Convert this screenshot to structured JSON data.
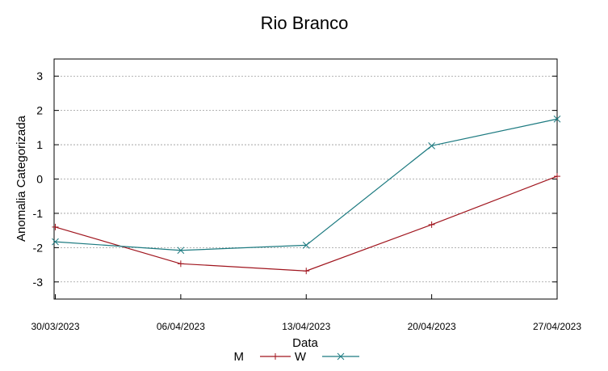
{
  "chart_data": {
    "type": "line",
    "title": "Rio Branco",
    "xlabel": "Data",
    "ylabel": "Anomalia Categorizada",
    "categories": [
      "30/03/2023",
      "06/04/2023",
      "13/04/2023",
      "20/04/2023",
      "27/04/2023"
    ],
    "ylim": [
      -3.5,
      3.5
    ],
    "yticks": [
      -3,
      -2,
      -1,
      0,
      1,
      2,
      3
    ],
    "grid": true,
    "legend_position": "bottom",
    "series": [
      {
        "name": "M",
        "color": "#a0151e",
        "marker": "plus",
        "values": [
          -1.4,
          -2.47,
          -2.68,
          -1.33,
          0.08
        ]
      },
      {
        "name": "W",
        "color": "#1c7a80",
        "marker": "cross",
        "values": [
          -1.83,
          -2.08,
          -1.93,
          0.97,
          1.75
        ]
      }
    ]
  }
}
